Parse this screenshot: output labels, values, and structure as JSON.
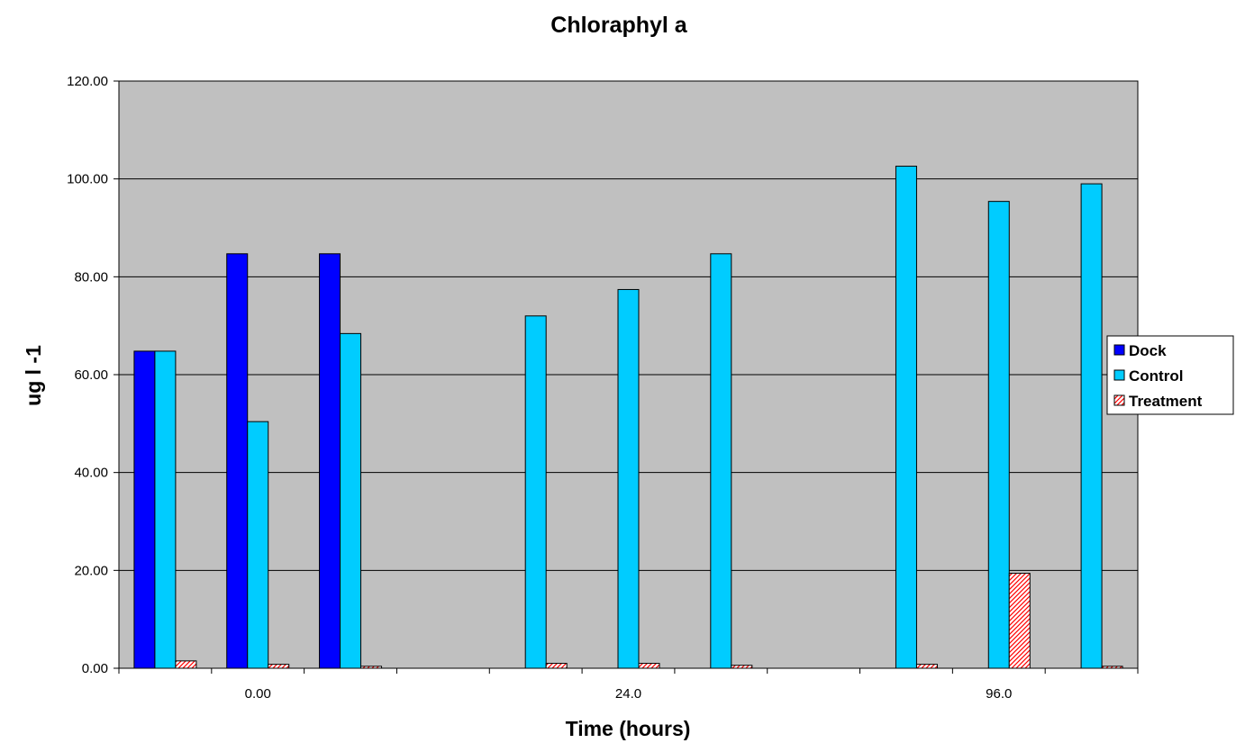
{
  "chart_data": {
    "type": "bar",
    "title": "Chloraphyl a",
    "xlabel": "Time (hours)",
    "ylabel": "ug l -1",
    "ylim": [
      0,
      120
    ],
    "ytick_labels": [
      "0.00",
      "20.00",
      "40.00",
      "60.00",
      "80.00",
      "100.00",
      "120.00"
    ],
    "y_ticks": [
      0,
      20,
      40,
      60,
      80,
      100,
      120
    ],
    "grid": true,
    "legend_position": "right",
    "plot_background": "#c0c0c0",
    "group_labels": [
      {
        "label": "0.00",
        "categories": [
          1,
          2,
          3
        ]
      },
      {
        "label": "24.0",
        "categories": [
          5,
          6,
          7
        ]
      },
      {
        "label": "96.0",
        "categories": [
          9,
          10,
          11
        ]
      }
    ],
    "categories": [
      "",
      "",
      "",
      "",
      "",
      "",
      "",
      "",
      "",
      "",
      ""
    ],
    "series": [
      {
        "name": "Dock",
        "color": "#0000ff",
        "pattern": "solid",
        "values": [
          64.8,
          84.7,
          84.7,
          null,
          null,
          null,
          null,
          null,
          null,
          null,
          null
        ]
      },
      {
        "name": "Control",
        "color": "#00ccff",
        "pattern": "solid",
        "values": [
          64.8,
          50.4,
          68.4,
          null,
          72.0,
          77.4,
          84.7,
          null,
          102.6,
          95.4,
          99.0
        ]
      },
      {
        "name": "Treatment",
        "color": "#ff0000",
        "pattern": "hatched",
        "values": [
          1.5,
          0.8,
          0.4,
          null,
          1.0,
          1.0,
          0.6,
          null,
          0.8,
          19.4,
          0.4
        ]
      }
    ]
  }
}
